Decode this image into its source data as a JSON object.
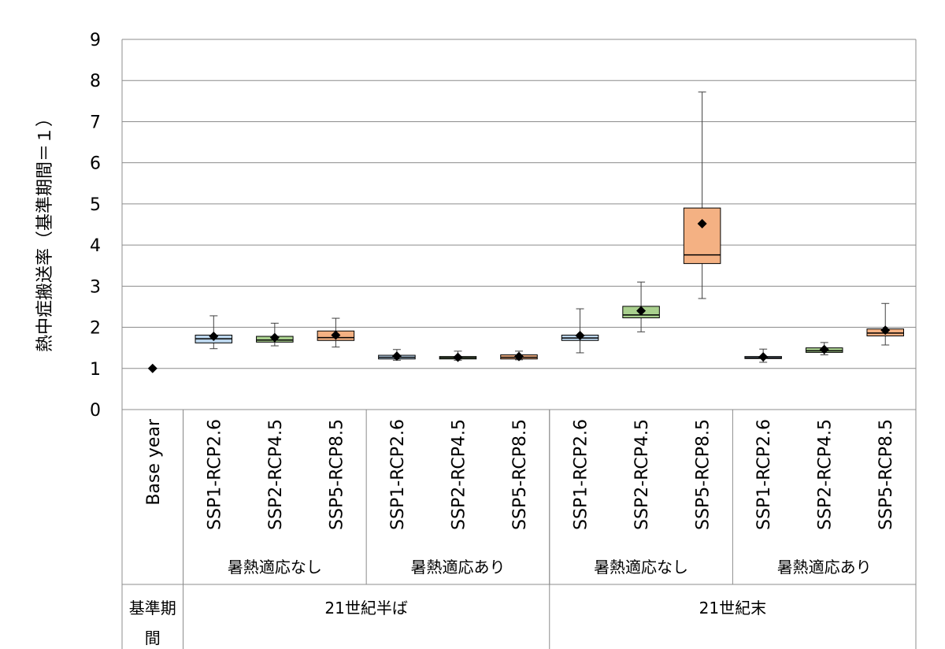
{
  "chart_data": {
    "type": "box",
    "ylabel": "熱中症搬送率（基準期間＝１）",
    "ylim": [
      0,
      9
    ],
    "yticks": [
      0,
      1,
      2,
      3,
      4,
      5,
      6,
      7,
      8,
      9
    ],
    "grid": true,
    "categories": [
      "Base year",
      "SSP1-RCP2.6",
      "SSP2-RCP4.5",
      "SSP5-RCP8.5",
      "SSP1-RCP2.6",
      "SSP2-RCP4.5",
      "SSP5-RCP8.5",
      "SSP1-RCP2.6",
      "SSP2-RCP4.5",
      "SSP5-RCP8.5",
      "SSP1-RCP2.6",
      "SSP2-RCP4.5",
      "SSP5-RCP8.5"
    ],
    "adaptation_groups": [
      {
        "label": "",
        "span": 1
      },
      {
        "label": "暑熱適応なし",
        "span": 3
      },
      {
        "label": "暑熱適応あり",
        "span": 3
      },
      {
        "label": "暑熱適応なし",
        "span": 3
      },
      {
        "label": "暑熱適応あり",
        "span": 3
      }
    ],
    "period_groups": [
      {
        "label": "基準期間",
        "span": 1
      },
      {
        "label": "21世紀半ば",
        "span": 6
      },
      {
        "label": "21世紀末",
        "span": 6
      }
    ],
    "scenario_colors": {
      "SSP1-RCP2.6": "#bdd7ee",
      "SSP2-RCP4.5": "#a9d08e",
      "SSP5-RCP8.5": "#f4b183"
    },
    "boxes": [
      {
        "min": null,
        "q1": null,
        "median": null,
        "q3": null,
        "max": null,
        "mean": 1.0
      },
      {
        "min": 1.48,
        "q1": 1.62,
        "median": 1.72,
        "q3": 1.81,
        "max": 2.28,
        "mean": 1.78
      },
      {
        "min": 1.55,
        "q1": 1.64,
        "median": 1.69,
        "q3": 1.78,
        "max": 2.1,
        "mean": 1.75
      },
      {
        "min": 1.52,
        "q1": 1.68,
        "median": 1.75,
        "q3": 1.91,
        "max": 2.22,
        "mean": 1.81
      },
      {
        "min": 1.2,
        "q1": 1.23,
        "median": 1.27,
        "q3": 1.32,
        "max": 1.46,
        "mean": 1.3
      },
      {
        "min": 1.2,
        "q1": 1.23,
        "median": 1.26,
        "q3": 1.29,
        "max": 1.42,
        "mean": 1.27
      },
      {
        "min": 1.21,
        "q1": 1.23,
        "median": 1.27,
        "q3": 1.33,
        "max": 1.42,
        "mean": 1.29
      },
      {
        "min": 1.38,
        "q1": 1.68,
        "median": 1.74,
        "q3": 1.81,
        "max": 2.45,
        "mean": 1.8
      },
      {
        "min": 1.89,
        "q1": 2.23,
        "median": 2.3,
        "q3": 2.51,
        "max": 3.1,
        "mean": 2.4
      },
      {
        "min": 2.7,
        "q1": 3.55,
        "median": 3.76,
        "q3": 4.9,
        "max": 7.72,
        "mean": 4.52
      },
      {
        "min": 1.15,
        "q1": 1.24,
        "median": 1.26,
        "q3": 1.29,
        "max": 1.47,
        "mean": 1.28
      },
      {
        "min": 1.33,
        "q1": 1.39,
        "median": 1.43,
        "q3": 1.5,
        "max": 1.63,
        "mean": 1.46
      },
      {
        "min": 1.57,
        "q1": 1.79,
        "median": 1.86,
        "q3": 1.96,
        "max": 2.58,
        "mean": 1.93
      }
    ]
  }
}
